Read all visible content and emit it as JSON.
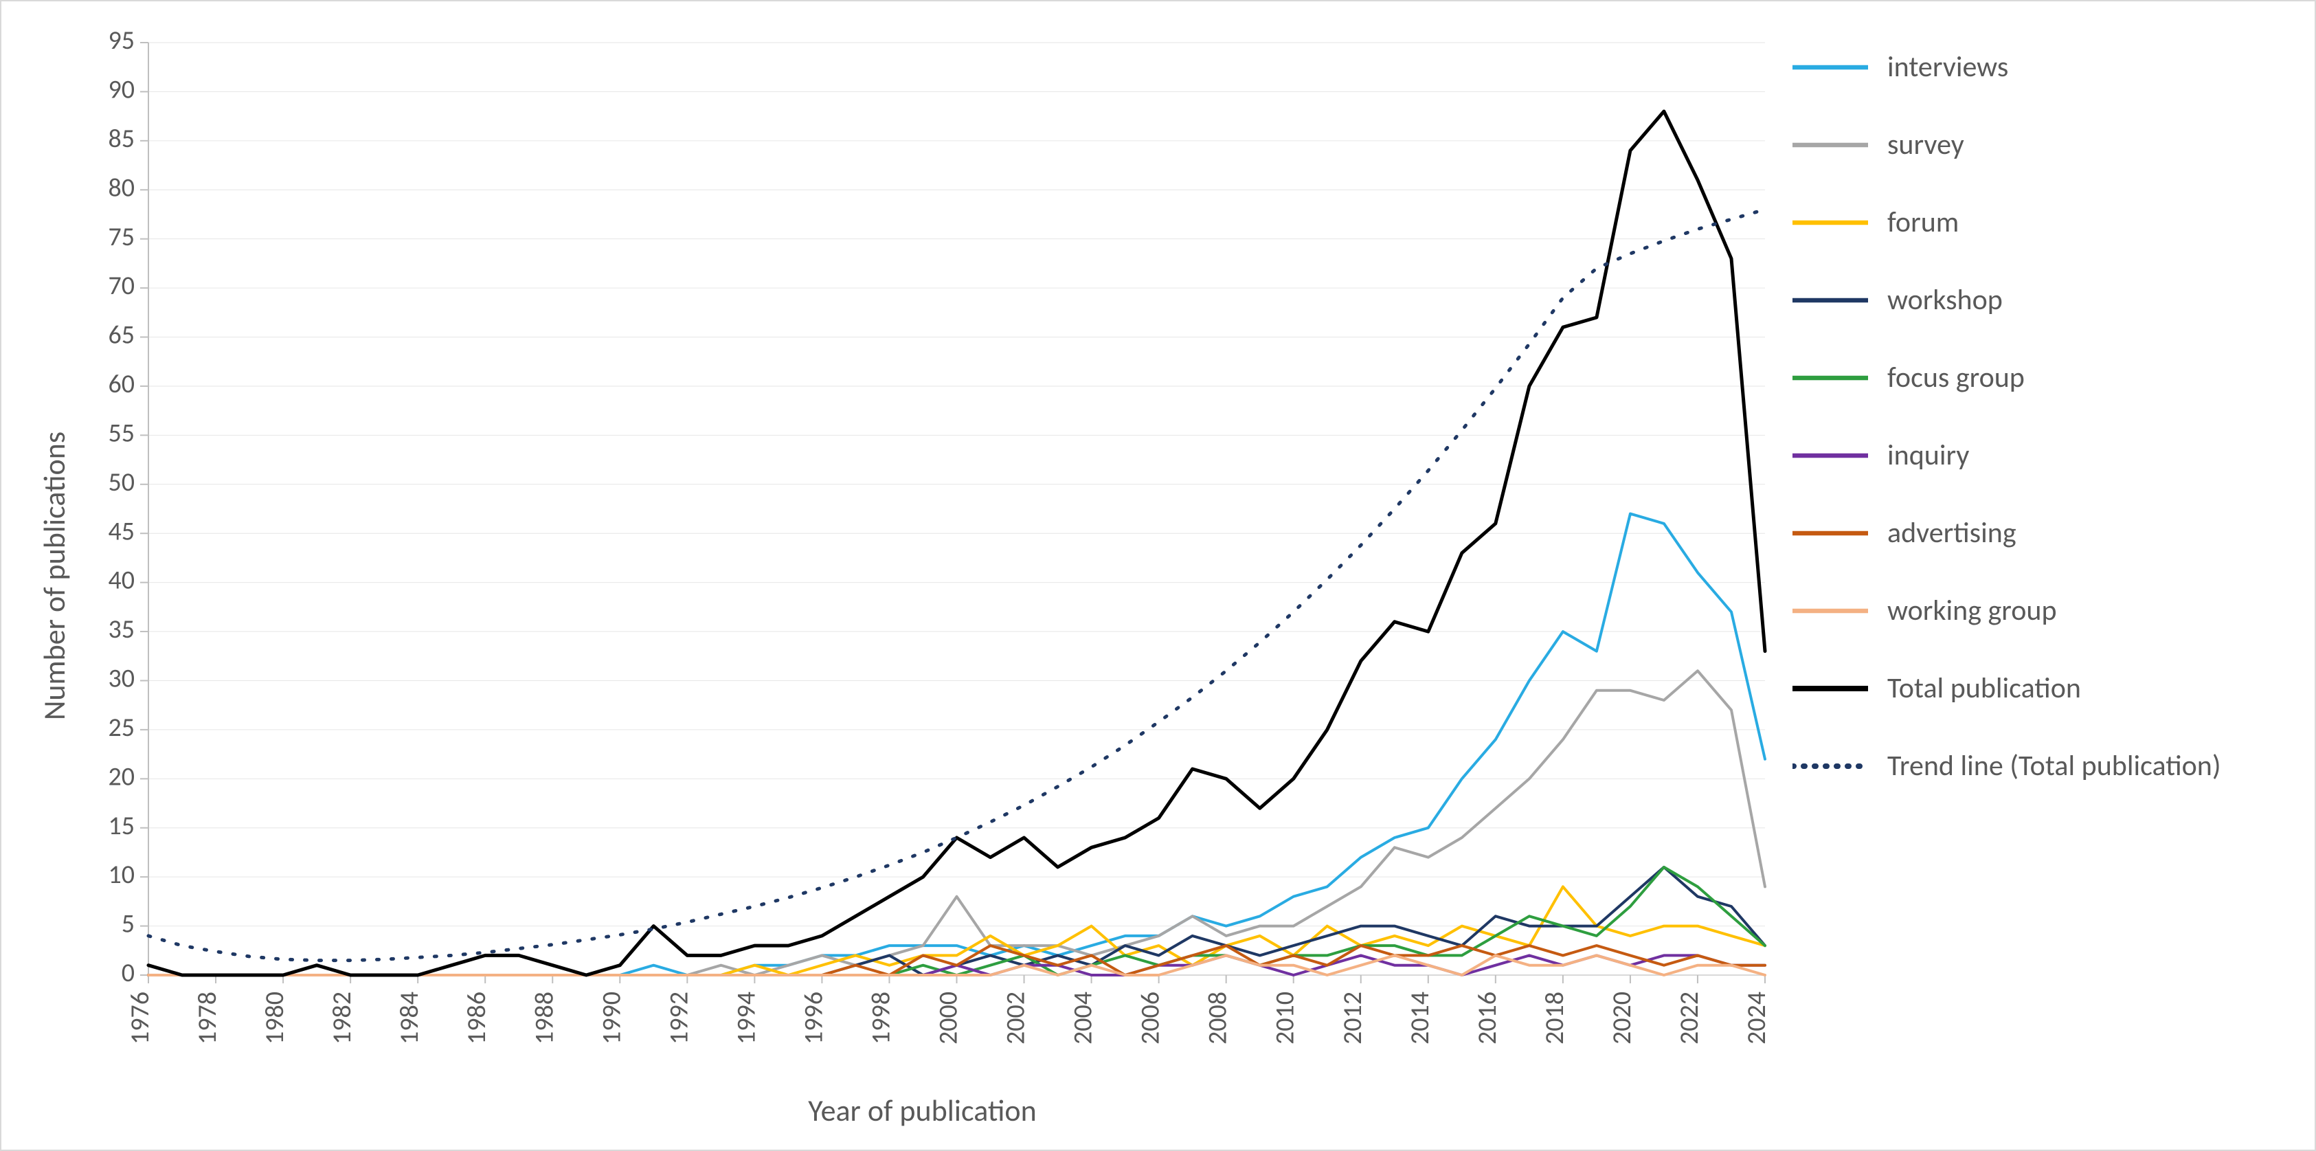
{
  "chart": {
    "type": "line",
    "background_color": "#ffffff",
    "grid_color": "#e6e6e6",
    "axis_color": "#bfbfbf",
    "baseline_color": "#d9d9d9",
    "label_fontsize": 38,
    "title_fontsize": 44,
    "x_title": "Year of publication",
    "y_title": "Number of publications",
    "xlim": [
      1976,
      2024
    ],
    "x_ticks": [
      1976,
      1978,
      1980,
      1982,
      1984,
      1986,
      1988,
      1990,
      1992,
      1994,
      1996,
      1998,
      2000,
      2002,
      2004,
      2006,
      2008,
      2010,
      2012,
      2014,
      2016,
      2018,
      2020,
      2022,
      2024
    ],
    "ylim": [
      0,
      95
    ],
    "y_ticks": [
      0,
      5,
      10,
      15,
      20,
      25,
      30,
      35,
      40,
      45,
      50,
      55,
      60,
      65,
      70,
      75,
      80,
      85,
      90,
      95
    ],
    "series": [
      {
        "name": "interviews",
        "color": "#29abe2",
        "width": 4,
        "dash": null,
        "y": [
          0,
          0,
          0,
          0,
          0,
          1,
          0,
          0,
          0,
          0,
          0,
          0,
          0,
          0,
          0,
          1,
          0,
          0,
          1,
          1,
          2,
          2,
          3,
          3,
          3,
          2,
          3,
          2,
          3,
          4,
          4,
          6,
          5,
          6,
          8,
          9,
          12,
          14,
          15,
          20,
          24,
          30,
          35,
          33,
          47,
          46,
          41,
          37,
          22
        ]
      },
      {
        "name": "survey",
        "color": "#a6a6a6",
        "width": 4,
        "dash": null,
        "y": [
          0,
          0,
          0,
          0,
          0,
          0,
          0,
          0,
          0,
          0,
          0,
          0,
          0,
          0,
          0,
          0,
          0,
          1,
          0,
          1,
          2,
          1,
          2,
          3,
          8,
          3,
          3,
          3,
          2,
          3,
          4,
          6,
          4,
          5,
          5,
          7,
          9,
          13,
          12,
          14,
          17,
          20,
          24,
          29,
          29,
          28,
          31,
          27,
          9
        ]
      },
      {
        "name": "forum",
        "color": "#ffc000",
        "width": 4,
        "dash": null,
        "y": [
          0,
          0,
          0,
          0,
          0,
          0,
          0,
          0,
          0,
          0,
          0,
          0,
          0,
          0,
          0,
          0,
          0,
          0,
          1,
          0,
          1,
          2,
          1,
          2,
          2,
          4,
          2,
          3,
          5,
          2,
          3,
          1,
          3,
          4,
          2,
          5,
          3,
          4,
          3,
          5,
          4,
          3,
          9,
          5,
          4,
          5,
          5,
          4,
          3
        ]
      },
      {
        "name": "workshop",
        "color": "#1f3864",
        "width": 4,
        "dash": null,
        "y": [
          0,
          0,
          0,
          0,
          0,
          0,
          0,
          0,
          0,
          0,
          0,
          0,
          0,
          0,
          0,
          0,
          0,
          0,
          0,
          0,
          0,
          1,
          2,
          0,
          1,
          2,
          1,
          2,
          1,
          3,
          2,
          4,
          3,
          2,
          3,
          4,
          5,
          5,
          4,
          3,
          6,
          5,
          5,
          5,
          8,
          11,
          8,
          7,
          3
        ]
      },
      {
        "name": "focus group",
        "color": "#2e9e3f",
        "width": 4,
        "dash": null,
        "y": [
          0,
          0,
          0,
          0,
          0,
          0,
          0,
          0,
          0,
          0,
          0,
          0,
          0,
          0,
          0,
          0,
          0,
          0,
          0,
          0,
          0,
          0,
          0,
          1,
          0,
          1,
          2,
          0,
          1,
          2,
          1,
          2,
          2,
          1,
          2,
          2,
          3,
          3,
          2,
          2,
          4,
          6,
          5,
          4,
          7,
          11,
          9,
          6,
          3
        ]
      },
      {
        "name": "inquiry",
        "color": "#7030a0",
        "width": 4,
        "dash": null,
        "y": [
          0,
          0,
          0,
          0,
          0,
          0,
          0,
          0,
          0,
          0,
          0,
          0,
          0,
          0,
          0,
          0,
          0,
          0,
          0,
          0,
          0,
          0,
          0,
          0,
          1,
          0,
          1,
          1,
          0,
          0,
          1,
          1,
          2,
          1,
          0,
          1,
          2,
          1,
          1,
          0,
          1,
          2,
          1,
          2,
          1,
          2,
          2,
          1,
          1
        ]
      },
      {
        "name": "advertising",
        "color": "#c55a11",
        "width": 4,
        "dash": null,
        "y": [
          0,
          0,
          0,
          0,
          0,
          0,
          0,
          0,
          0,
          0,
          0,
          0,
          0,
          0,
          0,
          0,
          0,
          0,
          0,
          0,
          0,
          1,
          0,
          2,
          1,
          3,
          2,
          1,
          2,
          0,
          1,
          2,
          3,
          1,
          2,
          1,
          3,
          2,
          2,
          3,
          2,
          3,
          2,
          3,
          2,
          1,
          2,
          1,
          1
        ]
      },
      {
        "name": "working group",
        "color": "#f4b183",
        "width": 4,
        "dash": null,
        "y": [
          0,
          0,
          0,
          0,
          0,
          0,
          0,
          0,
          0,
          0,
          0,
          0,
          0,
          0,
          0,
          0,
          0,
          0,
          0,
          0,
          0,
          0,
          0,
          0,
          0,
          0,
          1,
          0,
          1,
          0,
          0,
          1,
          2,
          1,
          1,
          0,
          1,
          2,
          1,
          0,
          2,
          1,
          1,
          2,
          1,
          0,
          1,
          1,
          0
        ]
      },
      {
        "name": "Total publication",
        "color": "#000000",
        "width": 5,
        "dash": null,
        "y": [
          1,
          0,
          0,
          0,
          0,
          1,
          0,
          0,
          0,
          1,
          2,
          2,
          1,
          0,
          1,
          5,
          2,
          2,
          3,
          3,
          4,
          6,
          8,
          10,
          14,
          12,
          14,
          11,
          13,
          14,
          16,
          21,
          20,
          17,
          20,
          25,
          32,
          36,
          35,
          43,
          46,
          60,
          66,
          67,
          84,
          88,
          81,
          73,
          33
        ]
      },
      {
        "name": "Trend line (Total publication)",
        "color": "#1f3864",
        "width": 5,
        "dash": "8,12",
        "y": [
          4,
          3,
          2.4,
          1.9,
          1.6,
          1.5,
          1.5,
          1.6,
          1.8,
          2.0,
          2.3,
          2.7,
          3.1,
          3.6,
          4.1,
          4.7,
          5.4,
          6.2,
          7.0,
          7.9,
          8.9,
          10.0,
          11.2,
          12.5,
          14.0,
          15.6,
          17.3,
          19.2,
          21.2,
          23.4,
          25.8,
          28.3,
          31.0,
          33.9,
          37.0,
          40.3,
          43.8,
          47.5,
          51.4,
          55.5,
          59.8,
          64.3,
          69.0,
          72.0,
          73.5,
          74.8,
          76.0,
          77.0,
          78.0
        ]
      }
    ]
  },
  "legend_order": [
    "interviews",
    "survey",
    "forum",
    "workshop",
    "focus group",
    "inquiry",
    "advertising",
    "working group",
    "Total publication",
    "Trend line (Total publication)"
  ]
}
